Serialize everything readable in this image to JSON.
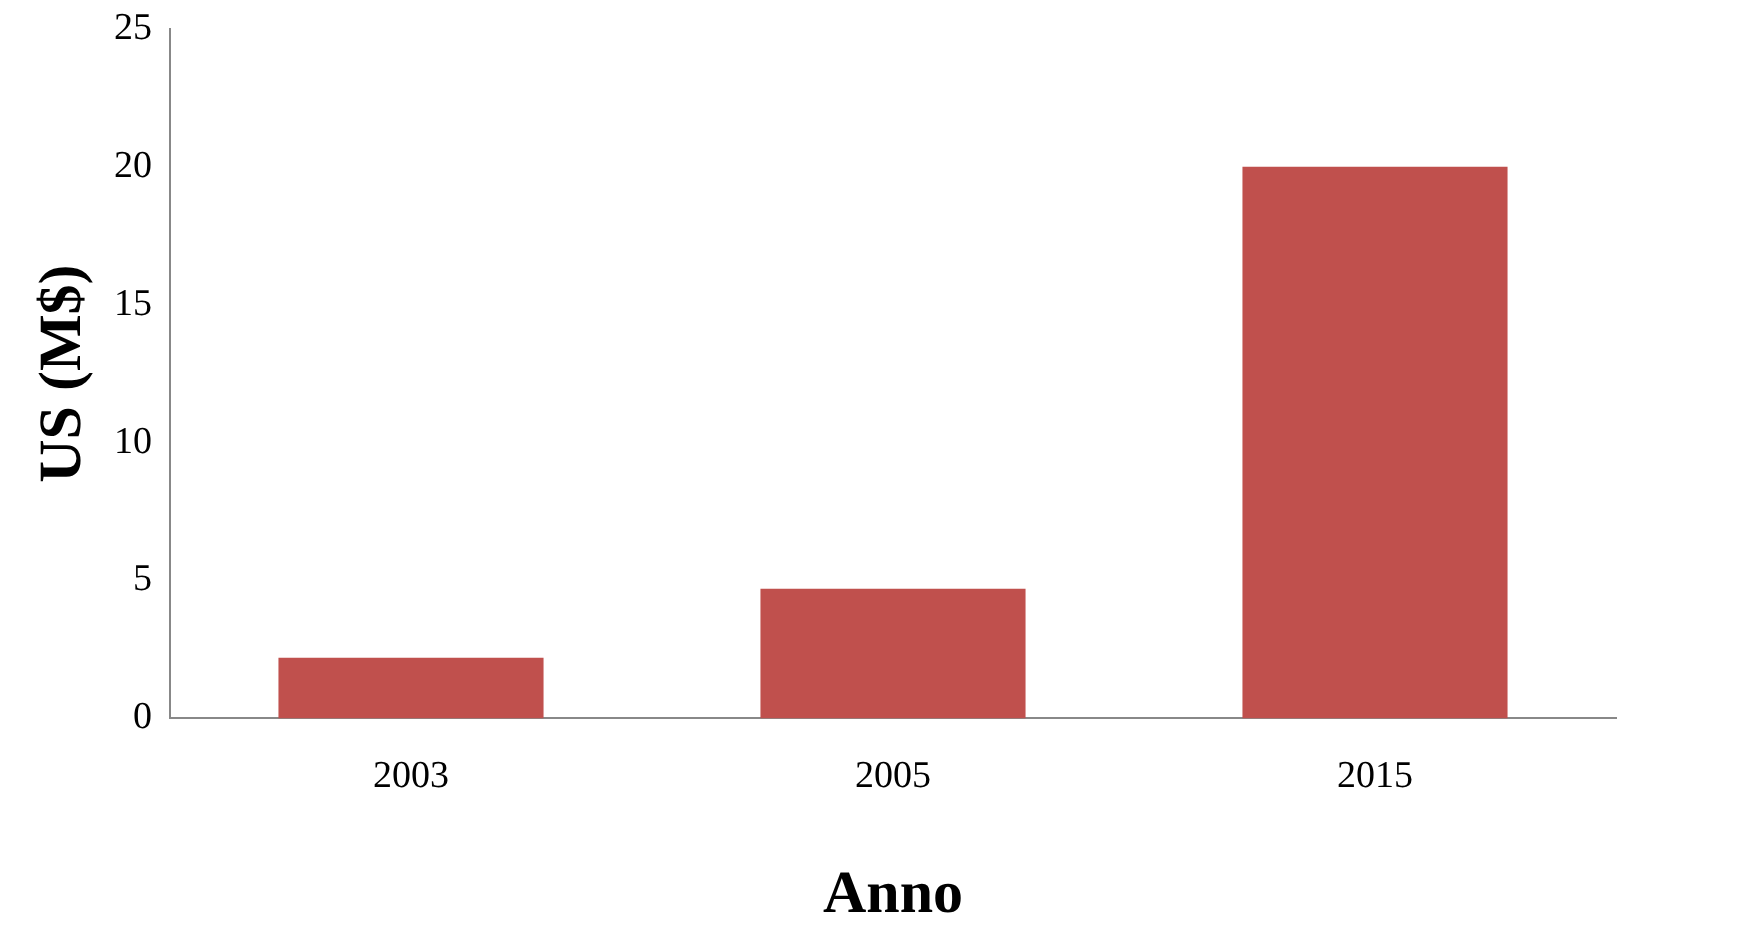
{
  "chart_data": {
    "type": "bar",
    "xlabel": "Anno",
    "ylabel": "US (M$)",
    "categories": [
      "2003",
      "2005",
      "2015"
    ],
    "values": [
      2.2,
      4.7,
      20
    ],
    "color": "#c0504d",
    "ylim": [
      0,
      25
    ],
    "yticks": [
      0,
      5,
      10,
      15,
      20,
      25
    ],
    "grid": false,
    "legend": false
  }
}
